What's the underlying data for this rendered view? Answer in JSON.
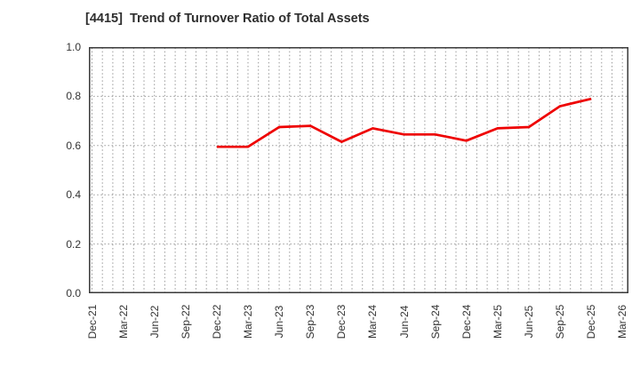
{
  "header": {
    "title": "[4415]  Trend of Turnover Ratio of Total Assets",
    "ticker_code": "4415"
  },
  "colors": {
    "line": "#ee0000",
    "grid": "#9a9a9a",
    "border": "#3a3a3a",
    "text": "#333333",
    "title_text": "#2e2e2e",
    "background": "#ffffff"
  },
  "chart_data": {
    "type": "line",
    "title": "[4415]  Trend of Turnover Ratio of Total Assets",
    "xlabel": "",
    "ylabel": "",
    "ylim": [
      0.0,
      1.0
    ],
    "ytick_values": [
      0.0,
      0.2,
      0.4,
      0.6,
      0.8,
      1.0
    ],
    "ytick_labels": [
      "0.0",
      "0.2",
      "0.4",
      "0.6",
      "0.8",
      "1.0"
    ],
    "grid": "dotted gray; vertical minor gridlines monthly, horizontal gridlines every 0.2",
    "legend": "none",
    "categories": [
      "Dec-21",
      "Mar-22",
      "Jun-22",
      "Sep-22",
      "Dec-22",
      "Mar-23",
      "Jun-23",
      "Sep-23",
      "Dec-23",
      "Mar-24",
      "Jun-24",
      "Sep-24",
      "Dec-24",
      "Mar-25",
      "Jun-25",
      "Sep-25",
      "Dec-25",
      "Mar-26"
    ],
    "series": [
      {
        "name": "Turnover Ratio of Total Assets",
        "color": "#ee0000",
        "values": [
          null,
          null,
          null,
          null,
          0.595,
          0.595,
          0.675,
          0.68,
          0.615,
          0.67,
          0.645,
          0.645,
          0.62,
          0.67,
          0.675,
          0.76,
          0.79,
          null
        ]
      }
    ]
  }
}
